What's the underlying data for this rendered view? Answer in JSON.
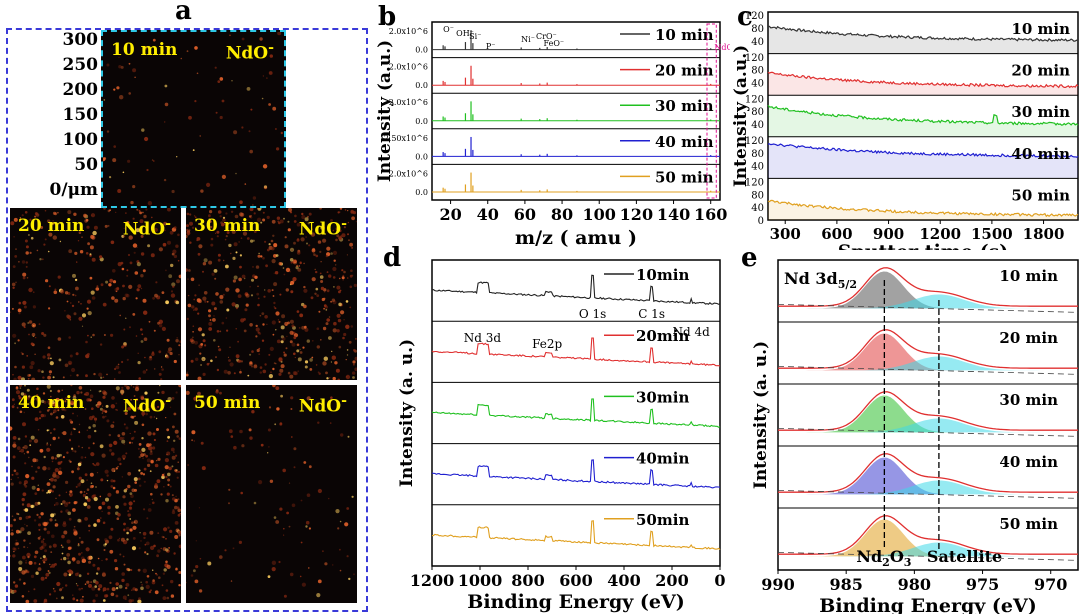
{
  "panels": {
    "a": "a",
    "b": "b",
    "c": "c",
    "d": "d",
    "e": "e"
  },
  "panel_a": {
    "y_ticks": [
      "300",
      "250",
      "200",
      "150",
      "100",
      "50",
      "0/μm"
    ],
    "species_main": "NdO",
    "species_sup": "-",
    "maps": [
      {
        "time": "10 min",
        "density": 0.05
      },
      {
        "time": "20 min",
        "density": 0.35
      },
      {
        "time": "30 min",
        "density": 0.55
      },
      {
        "time": "40 min",
        "density": 0.9
      },
      {
        "time": "50 min",
        "density": 0.08
      }
    ],
    "colors": {
      "frame": "#3a3ad8",
      "map_bg": "#0a0505",
      "label": "#ffee00",
      "cyan_border": "#2ec8e6"
    }
  },
  "chart_data": [
    {
      "panel": "b",
      "type": "line",
      "xlabel": "m/z ( amu )",
      "ylabel": "Intensity (a.u.)",
      "x_ticks": [
        20,
        40,
        60,
        80,
        100,
        120,
        140,
        160
      ],
      "xlim": [
        10,
        165
      ],
      "series": [
        {
          "name": "10 min",
          "color": "#333333",
          "ytick_top": "2.0x10^6"
        },
        {
          "name": "20 min",
          "color": "#e03030",
          "ytick_top": "2.0x10^6"
        },
        {
          "name": "30 min",
          "color": "#20c020",
          "ytick_top": "2.0x10^6"
        },
        {
          "name": "40 min",
          "color": "#2020d0",
          "ytick_top": "2.50x10^6"
        },
        {
          "name": "50 min",
          "color": "#e0a020",
          "ytick_top": "2.0x10^6"
        }
      ],
      "ytick_base": "0.0",
      "peak_labels": [
        "O⁻",
        "OH⁻",
        "Si⁻",
        "P⁻",
        "Ni⁻",
        "CrO⁻",
        "FeO⁻",
        "NdO⁻"
      ],
      "peaks": [
        [
          16,
          0.2
        ],
        [
          17,
          0.15
        ],
        [
          28,
          0.35
        ],
        [
          31,
          0.9
        ],
        [
          32,
          0.3
        ],
        [
          58,
          0.1
        ],
        [
          68,
          0.08
        ],
        [
          72,
          0.12
        ],
        [
          88,
          0.05
        ],
        [
          160,
          0.06
        ]
      ]
    },
    {
      "panel": "c",
      "type": "line",
      "xlabel": "Sputter time (s)",
      "ylabel": "Intensity (a.u.)",
      "x_ticks": [
        300,
        600,
        900,
        1200,
        1500,
        1800
      ],
      "xlim": [
        200,
        2000
      ],
      "y_ticks": [
        0,
        40,
        80,
        120
      ],
      "ylim": [
        0,
        130
      ],
      "series": [
        {
          "name": "10 min",
          "color": "#333333",
          "start": 85,
          "end": 42
        },
        {
          "name": "20 min",
          "color": "#e03030",
          "start": 70,
          "end": 28
        },
        {
          "name": "30 min",
          "color": "#20c020",
          "start": 95,
          "end": 40
        },
        {
          "name": "40 min",
          "color": "#2020d0",
          "start": 110,
          "end": 70
        },
        {
          "name": "50 min",
          "color": "#e0a020",
          "start": 60,
          "end": 15
        }
      ]
    },
    {
      "panel": "d",
      "type": "line",
      "xlabel": "Binding Energy (eV)",
      "ylabel": "Intensity (a. u.)",
      "x_ticks": [
        1200,
        1000,
        800,
        600,
        400,
        200,
        0
      ],
      "xlim": [
        1200,
        0
      ],
      "series": [
        {
          "name": "10min",
          "color": "#222222"
        },
        {
          "name": "20min",
          "color": "#e03030"
        },
        {
          "name": "30min",
          "color": "#20c020"
        },
        {
          "name": "40min",
          "color": "#2020d0"
        },
        {
          "name": "50min",
          "color": "#e0a020"
        }
      ],
      "annotations": [
        "Nd 3d",
        "Fe2p",
        "O 1s",
        "C 1s",
        "Nd 4d"
      ]
    },
    {
      "panel": "e",
      "type": "line",
      "xlabel": "Binding Energy (eV)",
      "ylabel": "Intensity (a. u.)",
      "x_ticks": [
        990,
        985,
        980,
        975,
        970
      ],
      "xlim": [
        990,
        968
      ],
      "series": [
        {
          "name": "10 min",
          "fill": "#555555"
        },
        {
          "name": "20 min",
          "fill": "#e04040"
        },
        {
          "name": "30 min",
          "fill": "#30c030"
        },
        {
          "name": "40 min",
          "fill": "#4040d0"
        },
        {
          "name": "50 min",
          "fill": "#e0a020"
        }
      ],
      "peak_positions": {
        "Nd2O3": 982.2,
        "Satellite": 978.2
      },
      "title_main": "Nd 3d",
      "title_sub": "5/2",
      "labels": {
        "nd2o3_main": "Nd",
        "nd2o3_sub1": "2",
        "nd2o3_mid": "O",
        "nd2o3_sub2": "3",
        "satellite": "Satellite"
      }
    }
  ]
}
